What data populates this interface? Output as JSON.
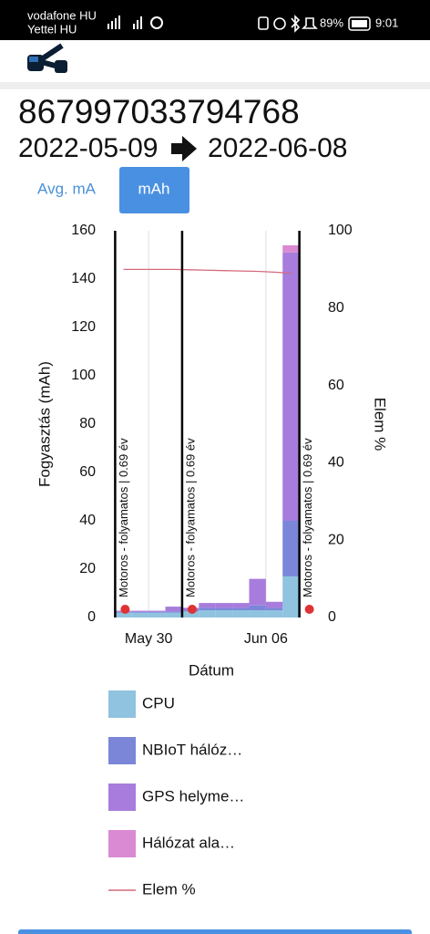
{
  "status_bar": {
    "carrier1": "vodafone HU",
    "carrier2": "Yettel HU",
    "battery": "89%",
    "time": "9:01"
  },
  "header": {
    "device_id": "867997033794768",
    "date_from": "2022-05-09",
    "date_to": "2022-06-08"
  },
  "tabs": {
    "avg": "Avg. mA",
    "mah": "mAh"
  },
  "chart_data": {
    "type": "stacked-bar-line",
    "ylabel": "Fogyasztás (mAh)",
    "y2label": "Elem %",
    "xlabel": "Dátum",
    "x": [
      "May 28",
      "May 29",
      "May 30",
      "May 31",
      "Jun 01",
      "Jun 02",
      "Jun 03",
      "Jun 04",
      "Jun 05",
      "Jun 06",
      "Jun 07"
    ],
    "xlim": [
      "May 27",
      "Jun 09"
    ],
    "xticks": [
      "May 30",
      "Jun 06"
    ],
    "ylim": [
      0,
      160
    ],
    "yticks": [
      0,
      20,
      40,
      60,
      80,
      100,
      120,
      140,
      160
    ],
    "y2lim": [
      0,
      100
    ],
    "y2ticks": [
      0,
      20,
      40,
      60,
      80,
      100
    ],
    "series": [
      {
        "name": "CPU",
        "color": "#8fc3df",
        "values": [
          2,
          2,
          2,
          2,
          2.5,
          3,
          3,
          3,
          3,
          3,
          17
        ]
      },
      {
        "name": "NBIoT hálóz…",
        "color": "#7b86d8",
        "values": [
          0.3,
          0.3,
          0.3,
          0.5,
          0.5,
          1,
          1,
          1,
          2,
          1,
          23
        ]
      },
      {
        "name": "GPS helyme…",
        "color": "#a77cdc",
        "values": [
          0.5,
          0.5,
          0.5,
          2,
          1,
          2,
          2,
          2,
          11,
          2.5,
          111
        ]
      },
      {
        "name": "Hálózat ala…",
        "color": "#d98ad3",
        "values": [
          0,
          0,
          0,
          0,
          0,
          0,
          0,
          0,
          0,
          0,
          3
        ]
      },
      {
        "name": "Elem %",
        "color": "#d46a7c",
        "axis": "y2",
        "kind": "line",
        "values": [
          90,
          90,
          90,
          90,
          89.9,
          89.8,
          89.7,
          89.6,
          89.5,
          89.3,
          89
        ]
      }
    ],
    "annotations": [
      {
        "x": "May 28",
        "text": "Motoros - folyamatos | 0.69 év"
      },
      {
        "x": "Jun 01",
        "text": "Motoros - folyamatos | 0.69 év"
      },
      {
        "x": "Jun 08",
        "text": "Motoros - folyamatos | 0.69 év"
      }
    ]
  }
}
